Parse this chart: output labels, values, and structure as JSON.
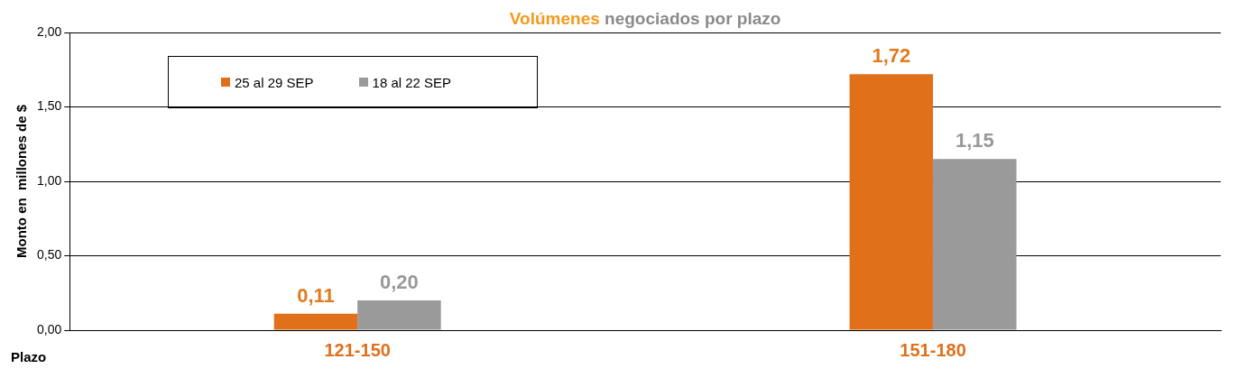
{
  "chart_data": {
    "type": "bar",
    "title": "Volúmenes negociados por plazo",
    "xlabel": "Plazo",
    "ylabel": "Monto en  millones de $",
    "categories": [
      "121-150",
      "151-180"
    ],
    "series": [
      {
        "name": "25 al 29 SEP",
        "color": "#e0701a",
        "values": [
          0.11,
          1.72
        ],
        "value_labels": [
          "0,11",
          "1,72"
        ]
      },
      {
        "name": "18 al 22 SEP",
        "color": "#9a9a9a",
        "values": [
          0.2,
          1.15
        ],
        "value_labels": [
          "0,20",
          "1,15"
        ]
      }
    ],
    "ylim": [
      0,
      2
    ],
    "yticks": [
      {
        "value": 0,
        "label": "0,00"
      },
      {
        "value": 0.5,
        "label": "0,50"
      },
      {
        "value": 1,
        "label": "1,00"
      },
      {
        "value": 1.5,
        "label": "1,50"
      },
      {
        "value": 2,
        "label": "2,00"
      }
    ],
    "grid": "y",
    "legend": "top left"
  }
}
